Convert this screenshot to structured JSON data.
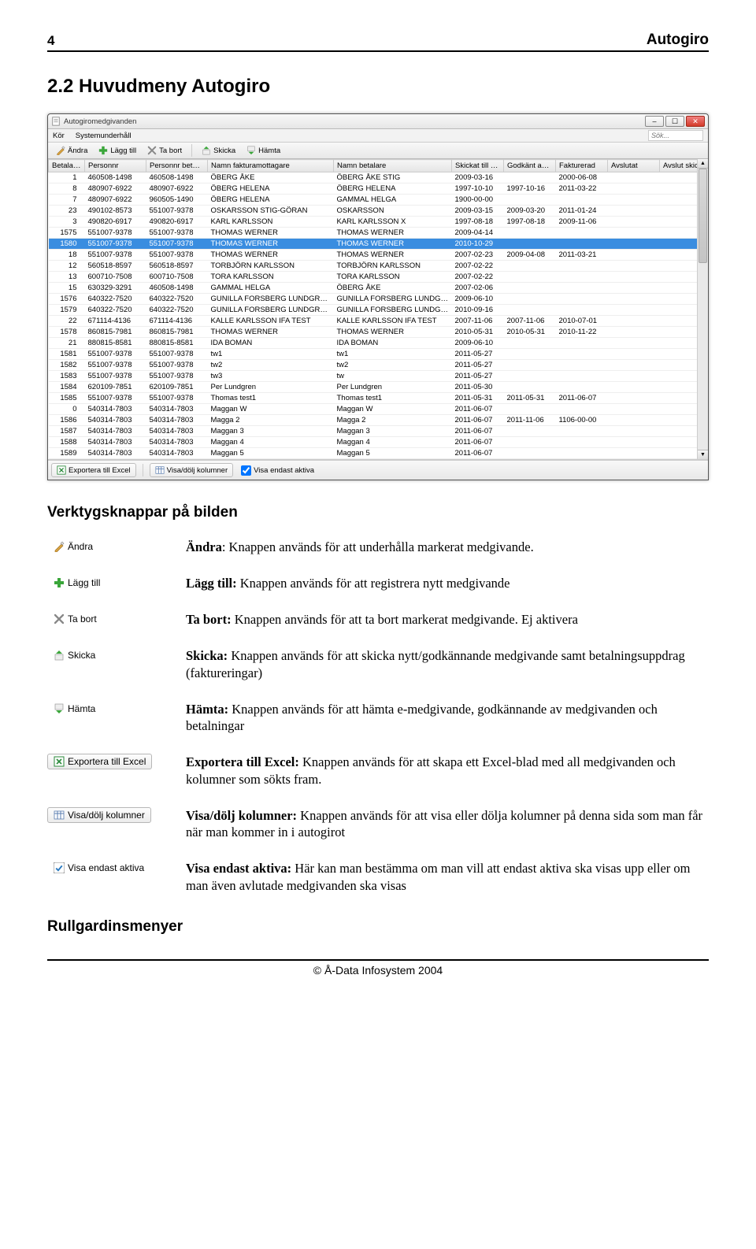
{
  "page": {
    "number": "4",
    "brand": "Autogiro",
    "section_title": "2.2 Huvudmeny Autogiro",
    "desc_heading": "Verktygsknappar på bilden",
    "sub_heading": "Rullgardinsmenyer",
    "footer": "© Å-Data Infosystem 2004"
  },
  "window": {
    "title": "Autogiromedgivanden",
    "menubar": {
      "items": [
        "Kör",
        "Systemunderhåll"
      ],
      "search_placeholder": "Sök..."
    },
    "toolbar": {
      "andra": "Ändra",
      "lagg_till": "Lägg till",
      "ta_bort": "Ta bort",
      "skicka": "Skicka",
      "hamta": "Hämta"
    },
    "statusbar": {
      "export_excel": "Exportera till Excel",
      "visa_dolj": "Visa/dölj kolumner",
      "visa_endast": "Visa endast aktiva"
    },
    "columns": [
      "Betalarnr",
      "Personnr",
      "Personnr betalare",
      "Namn fakturamottagare",
      "Namn betalare",
      "Skickat till BGC",
      "Godkänt av BGC",
      "Fakturerad",
      "Avslutat",
      "Avslut skickat"
    ],
    "rows": [
      [
        "1",
        "460508-1498",
        "460508-1498",
        "ÖBERG ÅKE",
        "ÖBERG ÅKE STIG",
        "2009-03-16",
        "",
        "2000-06-08",
        "",
        ""
      ],
      [
        "8",
        "480907-6922",
        "480907-6922",
        "ÖBERG HELENA",
        "ÖBERG HELENA",
        "1997-10-10",
        "1997-10-16",
        "2011-03-22",
        "",
        ""
      ],
      [
        "7",
        "480907-6922",
        "960505-1490",
        "ÖBERG HELENA",
        "GAMMAL HELGA",
        "1900-00-00",
        "",
        "",
        "",
        ""
      ],
      [
        "23",
        "490102-8573",
        "551007-9378",
        "OSKARSSON STIG-GÖRAN",
        "OSKARSSON",
        "2009-03-15",
        "2009-03-20",
        "2011-01-24",
        "",
        ""
      ],
      [
        "3",
        "490820-6917",
        "490820-6917",
        "KARL KARLSSON",
        "KARL KARLSSON X",
        "1997-08-18",
        "1997-08-18",
        "2009-11-06",
        "",
        ""
      ],
      [
        "1575",
        "551007-9378",
        "551007-9378",
        "THOMAS WERNER",
        "THOMAS WERNER",
        "2009-04-14",
        "",
        "",
        "",
        ""
      ],
      [
        "1580",
        "551007-9378",
        "551007-9378",
        "THOMAS WERNER",
        "THOMAS WERNER",
        "2010-10-29",
        "",
        "",
        "",
        ""
      ],
      [
        "18",
        "551007-9378",
        "551007-9378",
        "THOMAS WERNER",
        "THOMAS WERNER",
        "2007-02-23",
        "2009-04-08",
        "2011-03-21",
        "",
        ""
      ],
      [
        "12",
        "560518-8597",
        "560518-8597",
        "TORBJÖRN KARLSSON",
        "TORBJÖRN KARLSSON",
        "2007-02-22",
        "",
        "",
        "",
        ""
      ],
      [
        "13",
        "600710-7508",
        "600710-7508",
        "TORA KARLSSON",
        "TORA KARLSSON",
        "2007-02-22",
        "",
        "",
        "",
        ""
      ],
      [
        "15",
        "630329-3291",
        "460508-1498",
        "GAMMAL HELGA",
        "ÖBERG ÅKE",
        "2007-02-06",
        "",
        "",
        "",
        ""
      ],
      [
        "1576",
        "640322-7520",
        "640322-7520",
        "GUNILLA FORSBERG LUNDGREN",
        "GUNILLA FORSBERG LUNDGREN",
        "2009-06-10",
        "",
        "",
        "",
        ""
      ],
      [
        "1579",
        "640322-7520",
        "640322-7520",
        "GUNILLA FORSBERG LUNDGREN",
        "GUNILLA FORSBERG LUNDGREN",
        "2010-09-16",
        "",
        "",
        "",
        ""
      ],
      [
        "22",
        "671114-4136",
        "671114-4136",
        "KALLE KARLSSON IFA TEST",
        "KALLE KARLSSON IFA TEST",
        "2007-11-06",
        "2007-11-06",
        "2010-07-01",
        "",
        ""
      ],
      [
        "1578",
        "860815-7981",
        "860815-7981",
        "THOMAS WERNER",
        "THOMAS WERNER",
        "2010-05-31",
        "2010-05-31",
        "2010-11-22",
        "",
        ""
      ],
      [
        "21",
        "880815-8581",
        "880815-8581",
        "IDA BOMAN",
        "IDA BOMAN",
        "2009-06-10",
        "",
        "",
        "",
        ""
      ],
      [
        "1581",
        "551007-9378",
        "551007-9378",
        "tw1",
        "tw1",
        "2011-05-27",
        "",
        "",
        "",
        ""
      ],
      [
        "1582",
        "551007-9378",
        "551007-9378",
        "tw2",
        "tw2",
        "2011-05-27",
        "",
        "",
        "",
        ""
      ],
      [
        "1583",
        "551007-9378",
        "551007-9378",
        "tw3",
        "tw",
        "2011-05-27",
        "",
        "",
        "",
        ""
      ],
      [
        "1584",
        "620109-7851",
        "620109-7851",
        "Per Lundgren",
        "Per Lundgren",
        "2011-05-30",
        "",
        "",
        "",
        ""
      ],
      [
        "1585",
        "551007-9378",
        "551007-9378",
        "Thomas test1",
        "Thomas test1",
        "2011-05-31",
        "2011-05-31",
        "2011-06-07",
        "",
        ""
      ],
      [
        "0",
        "540314-7803",
        "540314-7803",
        "Maggan W",
        "Maggan W",
        "2011-06-07",
        "",
        "",
        "",
        ""
      ],
      [
        "1586",
        "540314-7803",
        "540314-7803",
        "Magga 2",
        "Magga 2",
        "2011-06-07",
        "2011-11-06",
        "1106-00-00",
        "",
        ""
      ],
      [
        "1587",
        "540314-7803",
        "540314-7803",
        "Maggan 3",
        "Maggan 3",
        "2011-06-07",
        "",
        "",
        "",
        ""
      ],
      [
        "1588",
        "540314-7803",
        "540314-7803",
        "Maggan 4",
        "Maggan 4",
        "2011-06-07",
        "",
        "",
        "",
        ""
      ],
      [
        "1589",
        "540314-7803",
        "540314-7803",
        "Maggan 5",
        "Maggan 5",
        "2011-06-07",
        "",
        "",
        "",
        ""
      ]
    ],
    "selected_index": 6
  },
  "buttons": {
    "andra": {
      "label": "Ändra",
      "desc_bold": "Ändra",
      "desc_rest": ": Knappen används för att underhålla markerat medgivande."
    },
    "lagg_till": {
      "label": "Lägg till",
      "desc_bold": "Lägg till:",
      "desc_rest": " Knappen används för att registrera nytt medgivande"
    },
    "ta_bort": {
      "label": "Ta bort",
      "desc_bold": "Ta bort:",
      "desc_rest": " Knappen används för att ta bort markerat medgivande. Ej aktivera"
    },
    "skicka": {
      "label": "Skicka",
      "desc_bold": "Skicka:",
      "desc_rest": " Knappen används för att skicka nytt/godkännande medgivande samt betalningsuppdrag (faktureringar)"
    },
    "hamta": {
      "label": "Hämta",
      "desc_bold": "Hämta:",
      "desc_rest": " Knappen används för att hämta e-medgivande, godkännande av medgivanden och betalningar"
    },
    "export": {
      "label": "Exportera till Excel",
      "desc_bold": "Exportera till Excel:",
      "desc_rest": " Knappen används för att skapa ett Excel-blad med all medgivanden och kolumner som sökts fram."
    },
    "visa_dolj": {
      "label": "Visa/dölj kolumner",
      "desc_bold": "Visa/dölj kolumner:",
      "desc_rest": " Knappen används för att visa eller dölja kolumner på denna sida som man får när man kommer in i autogirot"
    },
    "visa_endast": {
      "label": "Visa endast aktiva",
      "desc_bold": "Visa endast aktiva:",
      "desc_rest": " Här kan man bestämma om man vill att endast aktiva ska visas upp eller om man även avlutade medgivanden ska visas"
    }
  },
  "colors": {
    "selected_row_bg": "#3a8de0",
    "selected_row_fg": "#ffffff",
    "header_rule": "#000000"
  }
}
